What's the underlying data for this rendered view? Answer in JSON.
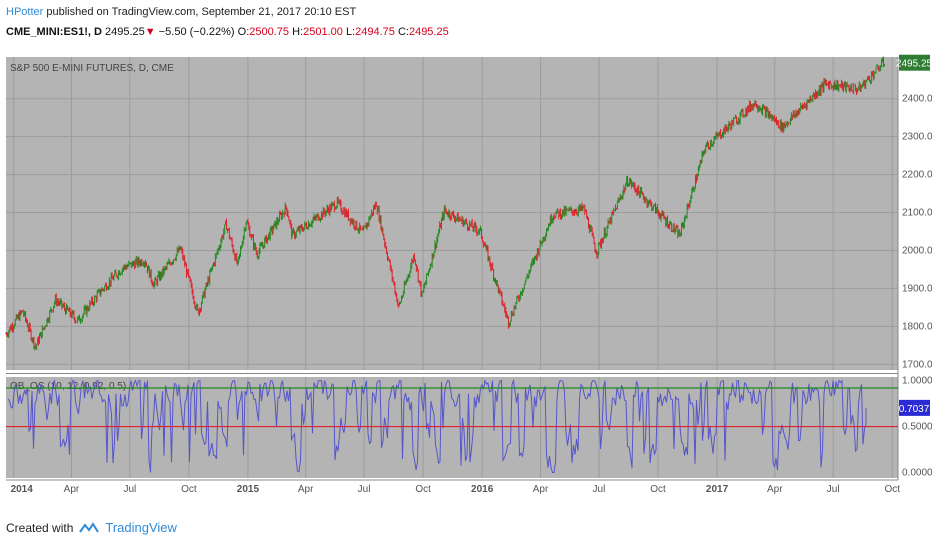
{
  "header": {
    "author": "HPotter",
    "published": "published on TradingView.com, September 21, 2017 20:10 EST",
    "symbol": "CME_MINI:ES1!, D",
    "last": "2495.25",
    "arrow": "▼",
    "change": "−5.50 (−0.22%)",
    "o_label": "O:",
    "o_val": "2500.75",
    "h_label": "H:",
    "h_val": "2501.00",
    "l_label": "L:",
    "l_val": "2494.75",
    "c_label": "C:",
    "c_val": "2495.25"
  },
  "footer": {
    "created": "Created with",
    "brand": "TradingView"
  },
  "colors": {
    "up": "#1f8a1f",
    "down": "#e0202a",
    "bg": "#b4b4b4",
    "osc": "#5555cc",
    "upper": "#1f8a1f",
    "lower": "#e0202a",
    "price_tag": "#2e7d32",
    "osc_tag": "#2b2bd6"
  },
  "chart_data": [
    {
      "type": "line",
      "title": "S&P 500 E-MINI FUTURES, D, CME",
      "price_label": "2495.25",
      "y_ticks": [
        1700,
        1800,
        1900,
        2000,
        2100,
        2200,
        2300,
        2400
      ],
      "y_tick_labels": [
        "1700.00",
        "1800.00",
        "1900.00",
        "2000.00",
        "2100.00",
        "2200.00",
        "2300.00",
        "2400.00"
      ],
      "ylim": [
        1685,
        2510
      ],
      "x_labels": [
        "2014",
        "Apr",
        "Jul",
        "Oct",
        "2015",
        "Apr",
        "Jul",
        "Oct",
        "2016",
        "Apr",
        "Jul",
        "Oct",
        "2017",
        "Apr",
        "Jul",
        "Oct"
      ],
      "x_label_bold": [
        true,
        false,
        false,
        false,
        true,
        false,
        false,
        false,
        true,
        false,
        false,
        false,
        true,
        false,
        false,
        false
      ],
      "x_label_dates": [
        "2014-01-01",
        "2014-04-01",
        "2014-07-01",
        "2014-10-01",
        "2015-01-01",
        "2015-04-01",
        "2015-07-01",
        "2015-10-01",
        "2016-01-01",
        "2016-04-01",
        "2016-07-01",
        "2016-10-01",
        "2017-01-01",
        "2017-04-01",
        "2017-07-01",
        "2017-10-01"
      ],
      "x_range": [
        "2013-12-20",
        "2017-10-10"
      ],
      "series": [
        {
          "x": [
            "2013-12-20",
            "2014-01-15",
            "2014-02-04",
            "2014-03-07",
            "2014-04-11",
            "2014-05-15",
            "2014-06-20",
            "2014-07-24",
            "2014-08-07",
            "2014-09-18",
            "2014-10-15",
            "2014-11-28",
            "2014-12-16",
            "2014-12-29",
            "2015-01-15",
            "2015-03-02",
            "2015-03-11",
            "2015-05-20",
            "2015-06-29",
            "2015-07-20",
            "2015-08-24",
            "2015-09-17",
            "2015-09-29",
            "2015-11-03",
            "2015-12-29",
            "2016-02-11",
            "2016-04-20",
            "2016-06-08",
            "2016-06-27",
            "2016-08-15",
            "2016-11-04",
            "2016-12-13",
            "2017-03-01",
            "2017-04-13",
            "2017-06-19",
            "2017-08-10",
            "2017-09-20"
          ],
          "y": [
            1780,
            1840,
            1745,
            1870,
            1815,
            1890,
            1955,
            1975,
            1910,
            2005,
            1835,
            2070,
            1960,
            2080,
            1990,
            2115,
            2040,
            2125,
            2045,
            2125,
            1850,
            1990,
            1880,
            2105,
            2050,
            1812,
            2095,
            2110,
            1995,
            2185,
            2040,
            2270,
            2390,
            2325,
            2440,
            2425,
            2500
          ]
        }
      ]
    },
    {
      "type": "line",
      "title": "OB_OS (10, 12, 0.92, 0.5)",
      "value_label": "0.7037",
      "y_ticks": [
        0,
        0.5,
        1
      ],
      "y_tick_labels": [
        "0.0000",
        "0.5000",
        "1.0000"
      ],
      "ylim": [
        -0.06,
        1.04
      ],
      "upper_level": 0.92,
      "lower_level": 0.5,
      "last_value": 0.7037
    }
  ]
}
